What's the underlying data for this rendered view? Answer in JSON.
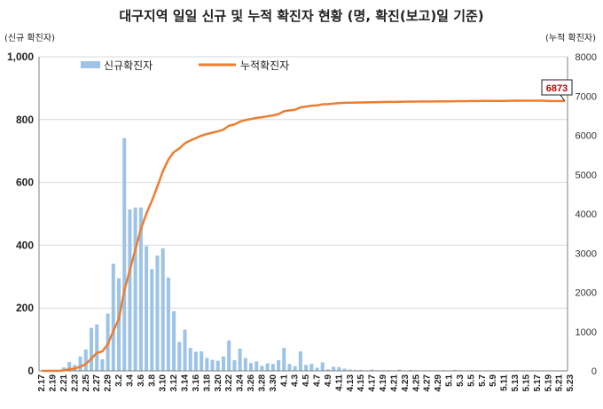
{
  "chart_data": {
    "type": "bar+line",
    "title": "대구지역 일일 신규 및 누적 확진자 현황 (명, 확진(보고)일 기준)",
    "ylabel_left": "(신규 확진자)",
    "ylabel_right": "(누적 확진자)",
    "ylim_left": [
      0,
      1000
    ],
    "ylim_right": [
      0,
      8000
    ],
    "yticks_left": [
      "0",
      "200",
      "400",
      "600",
      "800",
      "1,000"
    ],
    "yticks_right": [
      "0",
      "1000",
      "2000",
      "3000",
      "4000",
      "5000",
      "6000",
      "7000",
      "8000"
    ],
    "grid": "horizontal",
    "legend_position": "top-left",
    "x_tick_labels": [
      "2.17",
      "2.19",
      "2.21",
      "2.23",
      "2.25",
      "2.27",
      "2.29",
      "3.2",
      "3.4",
      "3.6",
      "3.8",
      "3.10",
      "3.12",
      "3.14",
      "3.16",
      "3.18",
      "3.20",
      "3.22",
      "3.24",
      "3.26",
      "3.28",
      "3.30",
      "4.1",
      "4.3",
      "4.5",
      "4.7",
      "4.9",
      "4.11",
      "4.13",
      "4.15",
      "4.17",
      "4.19",
      "4.21",
      "4.23",
      "4.25",
      "4.27",
      "4.29",
      "5.1",
      "5.3",
      "5.5",
      "5.7",
      "5.9",
      "5.11",
      "5.13",
      "5.15",
      "5.17",
      "5.19",
      "5.21",
      "5.23"
    ],
    "series": [
      {
        "name": "신규확진자",
        "kind": "bar",
        "color": "#9dc3e6",
        "values": [
          0,
          1,
          0,
          0,
          11,
          28,
          19,
          46,
          68,
          137,
          148,
          37,
          182,
          341,
          295,
          741,
          514,
          520,
          520,
          397,
          324,
          367,
          390,
          297,
          190,
          92,
          131,
          73,
          61,
          62,
          41,
          35,
          32,
          46,
          97,
          34,
          71,
          41,
          25,
          30,
          16,
          24,
          22,
          34,
          73,
          22,
          15,
          62,
          19,
          22,
          10,
          27,
          5,
          13,
          12,
          7,
          4,
          3,
          3,
          2,
          4,
          2,
          2,
          2,
          1,
          4,
          1,
          3,
          2,
          1,
          1,
          0,
          1,
          2,
          0,
          3,
          2,
          1,
          2,
          1,
          1,
          0,
          1,
          1,
          0,
          1,
          2,
          1,
          0,
          1,
          0,
          1,
          0,
          0,
          0,
          0
        ]
      },
      {
        "name": "누적확진자",
        "kind": "line",
        "color": "#ed7d31",
        "values": [
          0,
          1,
          1,
          1,
          12,
          40,
          59,
          105,
          173,
          310,
          458,
          495,
          677,
          1018,
          1313,
          2054,
          2568,
          3088,
          3608,
          4005,
          4329,
          4696,
          5086,
          5383,
          5573,
          5665,
          5796,
          5869,
          5930,
          5992,
          6033,
          6068,
          6100,
          6146,
          6243,
          6277,
          6348,
          6389,
          6414,
          6444,
          6460,
          6484,
          6506,
          6540,
          6613,
          6635,
          6650,
          6712,
          6731,
          6753,
          6763,
          6790,
          6795,
          6808,
          6820,
          6827,
          6831,
          6834,
          6837,
          6839,
          6843,
          6845,
          6847,
          6849,
          6850,
          6854,
          6855,
          6858,
          6860,
          6861,
          6862,
          6862,
          6863,
          6865,
          6865,
          6868,
          6870,
          6871,
          6873,
          6874,
          6875,
          6875,
          6876,
          6877,
          6877,
          6878,
          6880,
          6881,
          6881,
          6882,
          6882,
          6883,
          6873,
          6873,
          6873,
          6873
        ],
        "last_label": "6873"
      }
    ]
  }
}
